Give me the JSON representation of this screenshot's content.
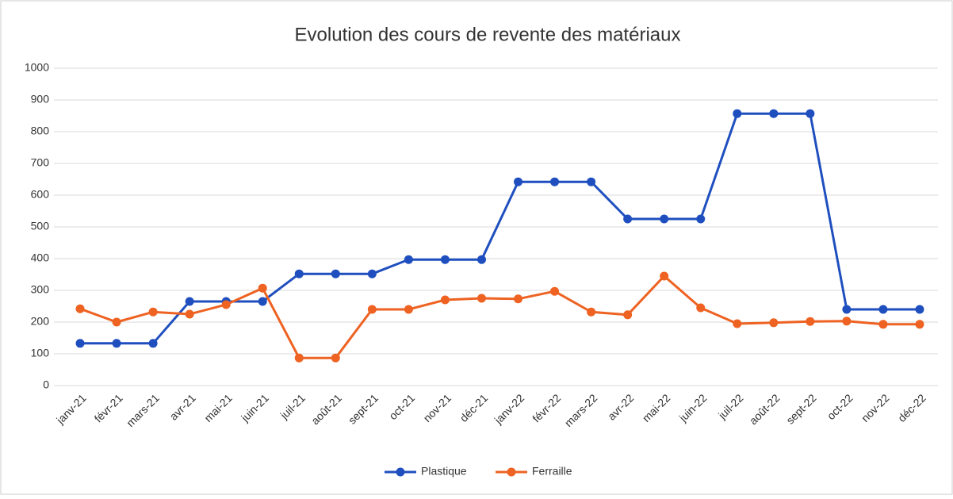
{
  "chart_data": {
    "type": "line",
    "title": "Evolution des cours de revente des matériaux",
    "categories": [
      "janv-21",
      "févr-21",
      "mars-21",
      "avr-21",
      "mai-21",
      "juin-21",
      "juil-21",
      "août-21",
      "sept-21",
      "oct-21",
      "nov-21",
      "déc-21",
      "janv-22",
      "févr-22",
      "mars-22",
      "avr-22",
      "mai-22",
      "juin-22",
      "juil-22",
      "août-22",
      "sept-22",
      "oct-22",
      "nov-22",
      "déc-22"
    ],
    "series": [
      {
        "name": "Plastique",
        "color": "#1f4fbf",
        "values": [
          133,
          133,
          133,
          265,
          265,
          265,
          352,
          352,
          352,
          397,
          397,
          397,
          642,
          642,
          642,
          525,
          525,
          525,
          857,
          857,
          857,
          240,
          240,
          240
        ]
      },
      {
        "name": "Ferraille",
        "color": "#ee6222",
        "values": [
          242,
          200,
          232,
          225,
          255,
          307,
          87,
          87,
          240,
          240,
          270,
          275,
          273,
          297,
          232,
          223,
          345,
          245,
          195,
          198,
          202,
          203,
          193,
          193
        ]
      }
    ],
    "ylim": [
      0,
      1000
    ],
    "yticks": [
      0,
      100,
      200,
      300,
      400,
      500,
      600,
      700,
      800,
      900,
      1000
    ],
    "grid": true,
    "legend": "bottom"
  }
}
